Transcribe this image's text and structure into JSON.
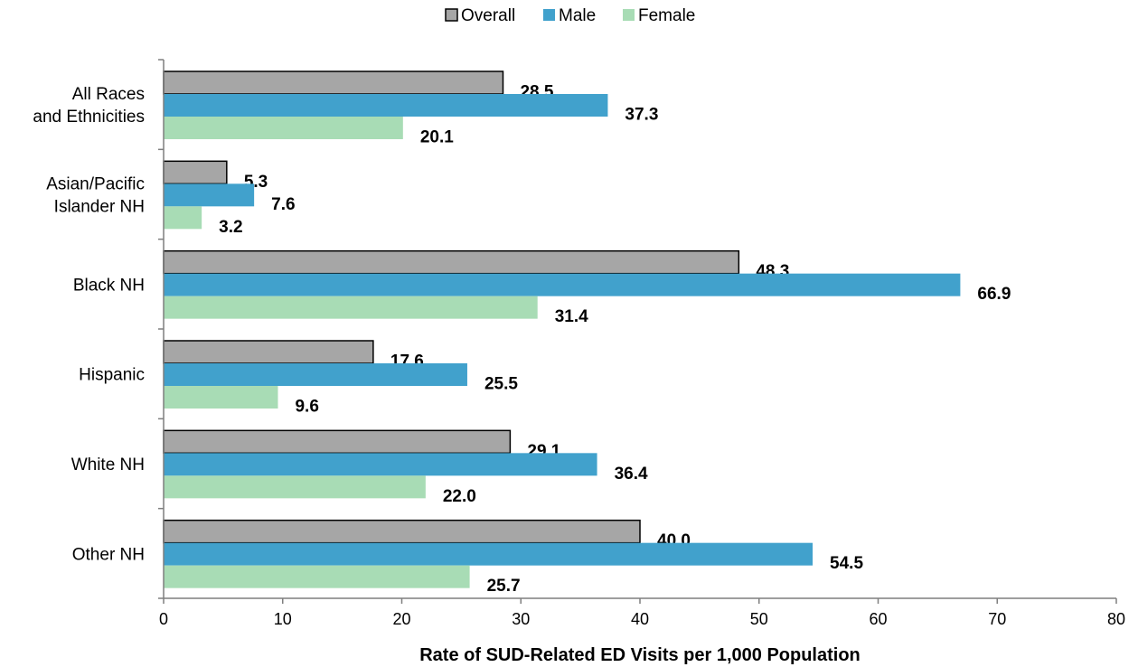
{
  "chart_data": {
    "type": "bar",
    "orientation": "horizontal",
    "categories": [
      "All Races and Ethnicities",
      "Asian/Pacific Islander NH",
      "Black NH",
      "Hispanic",
      "White NH",
      "Other NH"
    ],
    "category_lines": [
      [
        "All Races",
        "and Ethnicities"
      ],
      [
        "Asian/Pacific",
        "Islander NH"
      ],
      [
        "Black NH"
      ],
      [
        "Hispanic"
      ],
      [
        "White NH"
      ],
      [
        "Other NH"
      ]
    ],
    "series": [
      {
        "name": "Overall",
        "color": "#a6a6a6",
        "values": [
          28.5,
          5.3,
          48.3,
          17.6,
          29.1,
          40.0
        ],
        "labels": [
          "28.5",
          "5.3",
          "48.3",
          "17.6",
          "29.1",
          "40.0"
        ]
      },
      {
        "name": "Male",
        "color": "#41a1cc",
        "values": [
          37.3,
          7.6,
          66.9,
          25.5,
          36.4,
          54.5
        ],
        "labels": [
          "37.3",
          "7.6",
          "66.9",
          "25.5",
          "36.4",
          "54.5"
        ]
      },
      {
        "name": "Female",
        "color": "#a8dcb5",
        "values": [
          20.1,
          3.2,
          31.4,
          9.6,
          22.0,
          25.7
        ],
        "labels": [
          "20.1",
          "3.2",
          "31.4",
          "9.6",
          "22.0",
          "25.7"
        ]
      }
    ],
    "xlabel": "Rate of SUD-Related ED Visits per 1,000 Population",
    "ylabel": "",
    "xlim": [
      0,
      80
    ],
    "xticks": [
      0,
      10,
      20,
      30,
      40,
      50,
      60,
      70,
      80
    ],
    "grid": false,
    "legend_position": "top"
  }
}
